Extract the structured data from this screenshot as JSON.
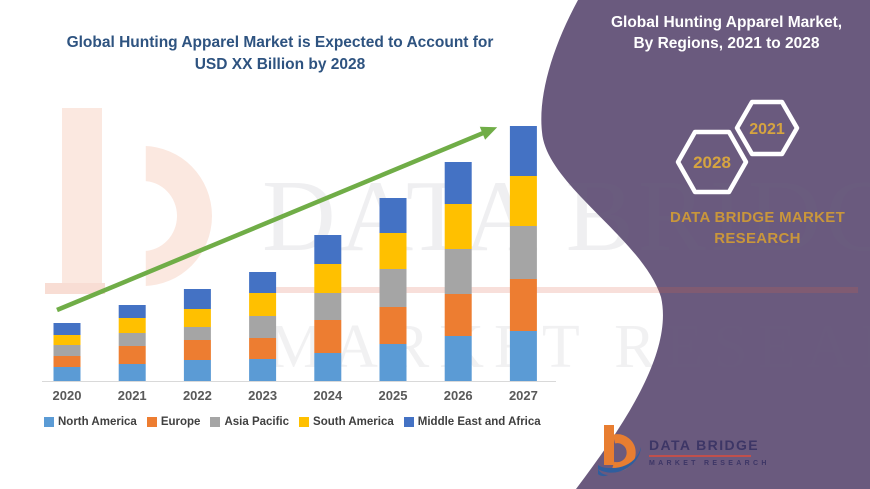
{
  "left_panel": {
    "title_line1": "Global Hunting Apparel Market is Expected to Account for",
    "title_line2": "USD XX Billion by 2028"
  },
  "right_panel": {
    "title_line1": "Global Hunting Apparel Market,",
    "title_line2": "By Regions, 2021 to 2028",
    "hexagons": [
      {
        "label": "2028"
      },
      {
        "label": "2021"
      }
    ],
    "brand_line1": "DATA BRIDGE MARKET",
    "brand_line2": "RESEARCH",
    "panel_color": "#6a5a7e",
    "gold_color": "#c9963b"
  },
  "watermark": {
    "line1": "DATA BRIDGE",
    "line2": "MARKET RESEARCH"
  },
  "footer_logo": {
    "name": "DATA BRIDGE",
    "subtitle": "MARKET RESEARCH"
  },
  "chart_data": {
    "type": "bar",
    "stacked": true,
    "title": "Global Hunting Apparel Market is Expected to Account for USD XX Billion by 2028",
    "categories": [
      "2020",
      "2021",
      "2022",
      "2023",
      "2024",
      "2025",
      "2026",
      "2027"
    ],
    "series": [
      {
        "name": "North America",
        "color": "#5b9bd5",
        "values": [
          14,
          17,
          21,
          22,
          28,
          37,
          45,
          50
        ]
      },
      {
        "name": "Europe",
        "color": "#ed7d31",
        "values": [
          11,
          18,
          20,
          21,
          33,
          37,
          42,
          52
        ]
      },
      {
        "name": "Asia Pacific",
        "color": "#a5a5a5",
        "values": [
          11,
          13,
          13,
          22,
          27,
          38,
          45,
          53
        ]
      },
      {
        "name": "South America",
        "color": "#ffc000",
        "values": [
          10,
          15,
          18,
          23,
          29,
          36,
          45,
          50
        ]
      },
      {
        "name": "Middle East and Africa",
        "color": "#4472c4",
        "values": [
          12,
          13,
          20,
          21,
          29,
          35,
          42,
          50
        ]
      }
    ],
    "value_axis_labels_shown": false,
    "ylim": [
      0,
      270
    ],
    "grid": false,
    "legend_position": "bottom",
    "annotation": "upward trend arrow",
    "arrow_color": "#70ad47",
    "axis_line_color": "#d9d9d9"
  }
}
